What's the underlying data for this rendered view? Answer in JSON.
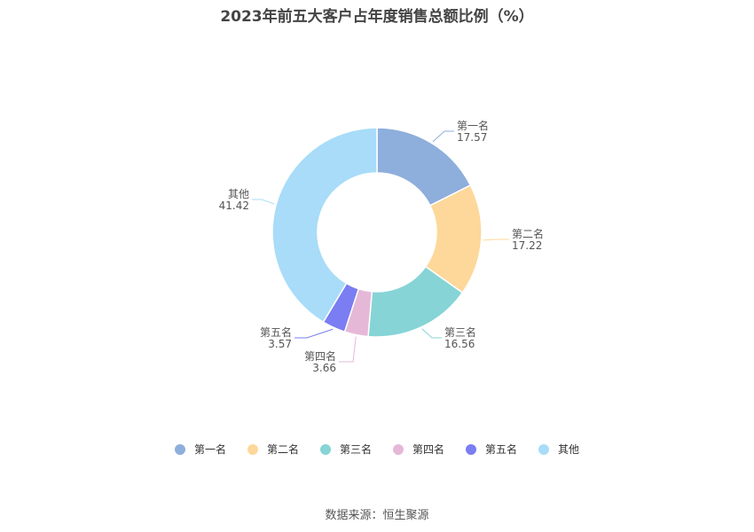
{
  "chart_data": {
    "type": "pie",
    "title": "2023年前五大客户占年度销售总额比例（%）",
    "categories": [
      "第一名",
      "第二名",
      "第三名",
      "第四名",
      "第五名",
      "其他"
    ],
    "values": [
      17.57,
      17.22,
      16.56,
      3.66,
      3.57,
      41.42
    ],
    "colors": [
      "#8eaedc",
      "#fdd89a",
      "#86d4d6",
      "#e6b8d8",
      "#7b7df2",
      "#a8dcf8"
    ],
    "legend_position": "bottom"
  },
  "source": "数据来源：恒生聚源"
}
